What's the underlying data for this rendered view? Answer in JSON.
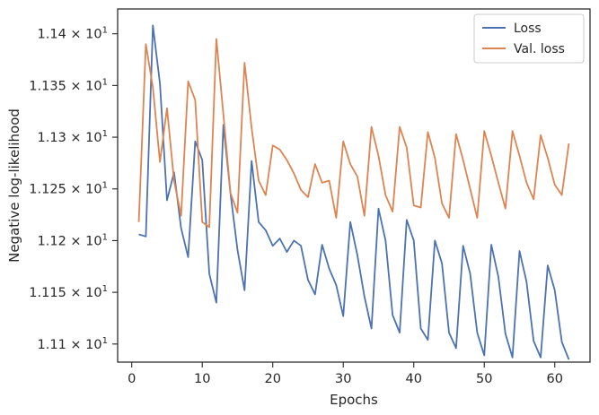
{
  "chart_data": {
    "type": "line",
    "xlabel": "Epochs",
    "ylabel": "Negative log-likelihood",
    "xlim": [
      -2,
      65
    ],
    "ylim": [
      11.0825,
      11.424
    ],
    "x_ticks": [
      0,
      10,
      20,
      30,
      40,
      50,
      60
    ],
    "x_tick_labels": [
      "0",
      "10",
      "20",
      "30",
      "40",
      "50",
      "60"
    ],
    "y_ticks": [
      11.1,
      11.15,
      11.2,
      11.25,
      11.3,
      11.35,
      11.4
    ],
    "y_tick_labels": [
      {
        "base": "1.11",
        "exp": "1"
      },
      {
        "base": "1.115",
        "exp": "1"
      },
      {
        "base": "1.12",
        "exp": "1"
      },
      {
        "base": "1.125",
        "exp": "1"
      },
      {
        "base": "1.13",
        "exp": "1"
      },
      {
        "base": "1.135",
        "exp": "1"
      },
      {
        "base": "1.14",
        "exp": "1"
      }
    ],
    "y_tick_mult": "× 10",
    "grid": false,
    "legend_position": "top-right",
    "x": [
      1,
      2,
      3,
      4,
      5,
      6,
      7,
      8,
      9,
      10,
      11,
      12,
      13,
      14,
      15,
      16,
      17,
      18,
      19,
      20,
      21,
      22,
      23,
      24,
      25,
      26,
      27,
      28,
      29,
      30,
      31,
      32,
      33,
      34,
      35,
      36,
      37,
      38,
      39,
      40,
      41,
      42,
      43,
      44,
      45,
      46,
      47,
      48,
      49,
      50,
      51,
      52,
      53,
      54,
      55,
      56,
      57,
      58,
      59,
      60,
      61,
      62
    ],
    "series": [
      {
        "name": "Loss",
        "color": "#4c72b0",
        "values": [
          11.206,
          11.204,
          11.408,
          11.352,
          11.239,
          11.266,
          11.212,
          11.184,
          11.296,
          11.278,
          11.168,
          11.14,
          11.312,
          11.246,
          11.191,
          11.152,
          11.277,
          11.218,
          11.21,
          11.195,
          11.202,
          11.189,
          11.2,
          11.195,
          11.162,
          11.148,
          11.196,
          11.173,
          11.157,
          11.127,
          11.218,
          11.186,
          11.146,
          11.115,
          11.231,
          11.2,
          11.128,
          11.111,
          11.22,
          11.2,
          11.115,
          11.104,
          11.2,
          11.178,
          11.111,
          11.096,
          11.195,
          11.168,
          11.111,
          11.089,
          11.196,
          11.165,
          11.11,
          11.087,
          11.19,
          11.16,
          11.103,
          11.087,
          11.176,
          11.152,
          11.102,
          11.085
        ]
      },
      {
        "name": "Val. loss",
        "color": "#dd8452",
        "values": [
          11.218,
          11.39,
          11.348,
          11.276,
          11.328,
          11.258,
          11.224,
          11.354,
          11.336,
          11.218,
          11.213,
          11.395,
          11.322,
          11.246,
          11.227,
          11.372,
          11.309,
          11.258,
          11.244,
          11.292,
          11.288,
          11.278,
          11.265,
          11.249,
          11.242,
          11.274,
          11.256,
          11.258,
          11.222,
          11.296,
          11.274,
          11.262,
          11.224,
          11.31,
          11.282,
          11.244,
          11.228,
          11.31,
          11.29,
          11.234,
          11.232,
          11.305,
          11.28,
          11.236,
          11.222,
          11.303,
          11.278,
          11.25,
          11.222,
          11.306,
          11.282,
          11.256,
          11.231,
          11.306,
          11.282,
          11.256,
          11.24,
          11.302,
          11.28,
          11.254,
          11.244,
          11.294
        ]
      }
    ]
  }
}
